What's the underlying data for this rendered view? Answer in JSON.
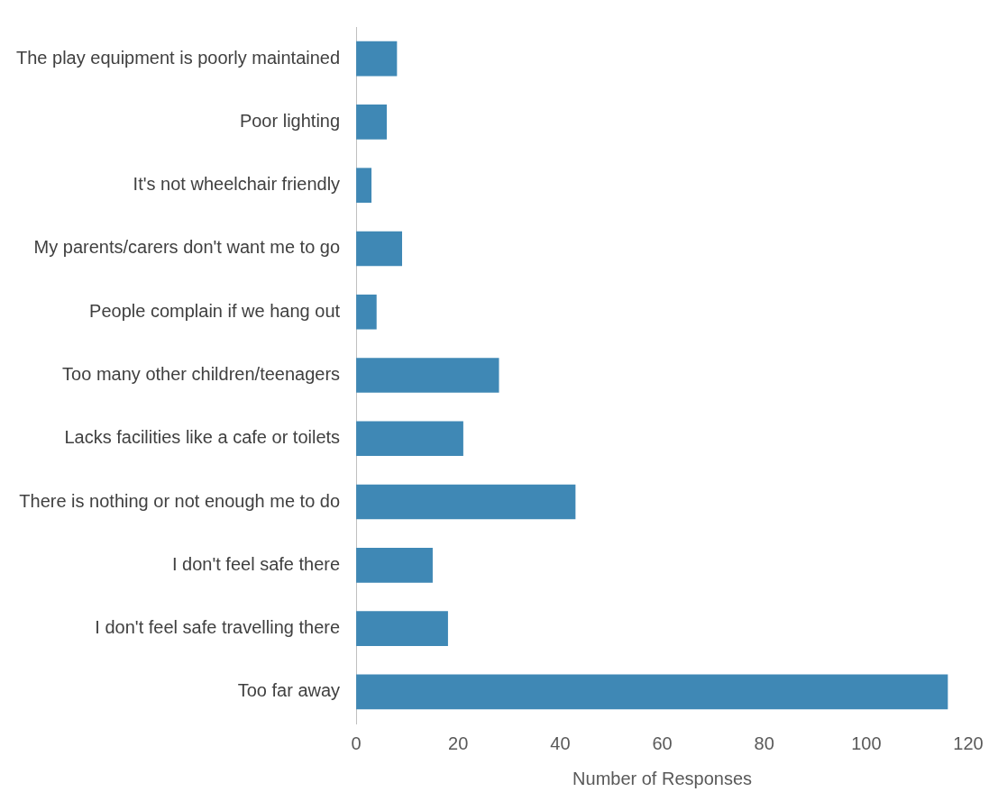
{
  "chart_data": {
    "type": "bar",
    "orientation": "horizontal",
    "xlabel": "Number of Responses",
    "categories": [
      "The play equipment is poorly maintained",
      "Poor lighting",
      "It's not wheelchair friendly",
      "My parents/carers don't want me to go",
      "People complain if we hang out",
      "Too many other children/teenagers",
      "Lacks facilities like a cafe or toilets",
      "There is nothing or not enough me to do",
      "I don't feel safe there",
      "I don't feel safe travelling there",
      "Too far away"
    ],
    "values": [
      8,
      6,
      3,
      9,
      4,
      28,
      21,
      43,
      15,
      18,
      116
    ],
    "color": "#3f88b5",
    "xlim": [
      0,
      120
    ],
    "xticks": [
      0,
      20,
      40,
      60,
      80,
      100,
      120
    ],
    "grid": false,
    "legend": false
  }
}
